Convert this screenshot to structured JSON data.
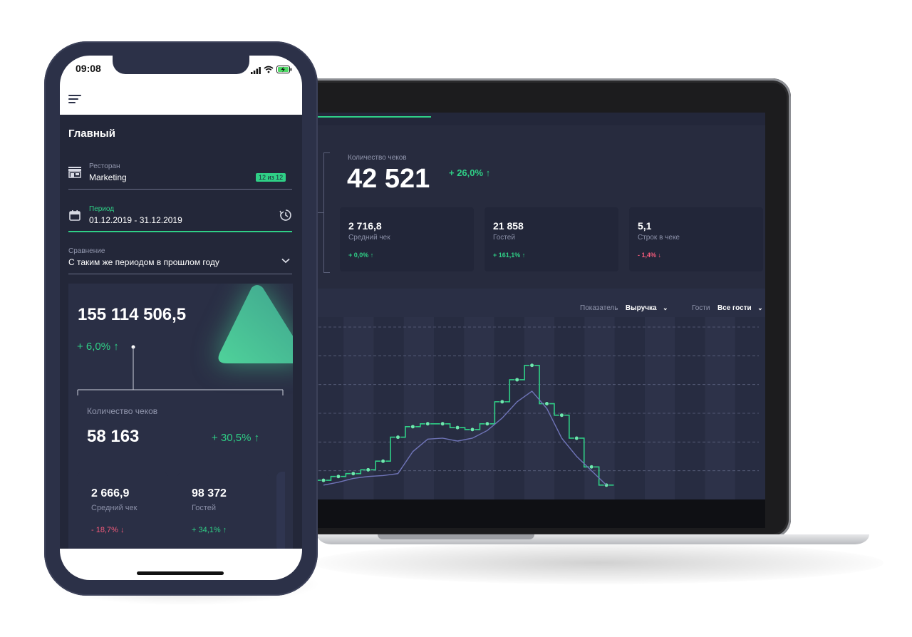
{
  "colors": {
    "accent": "#2fcf86",
    "negative": "#f35b7b",
    "panel": "#272b3e",
    "line": "#6f74b7"
  },
  "phone": {
    "status": {
      "time": "09:08",
      "icons": [
        "signal-icon",
        "wifi-icon",
        "battery-charging-icon"
      ]
    },
    "menu_icon": "menu-icon",
    "title": "Главный",
    "restaurant": {
      "label": "Ресторан",
      "value": "Marketing",
      "badge": "12 из 12",
      "icon": "store-icon"
    },
    "period": {
      "label": "Период",
      "value": "01.12.2019 - 31.12.2019",
      "icon": "calendar-icon",
      "action_icon": "history-icon"
    },
    "comparison": {
      "label": "Сравнение",
      "value": "С таким же периодом в прошлом году",
      "icon": "chevron-down-icon"
    },
    "total": {
      "value": "155 114 506,5",
      "change": "+ 6,0%",
      "direction": "up"
    },
    "checks": {
      "label": "Количество чеков",
      "value": "58 163",
      "change": "+ 30,5%",
      "direction": "up"
    },
    "cards": [
      {
        "value": "2 666,9",
        "label": "Средний чек",
        "change": "- 18,7%",
        "direction": "down"
      },
      {
        "value": "98 372",
        "label": "Гостей",
        "change": "+ 34,1%",
        "direction": "up"
      }
    ]
  },
  "laptop": {
    "checks": {
      "label": "Количество чеков",
      "value": "42 521",
      "change": "+ 26,0%",
      "direction": "up"
    },
    "cards": [
      {
        "value": "2 716,8",
        "label": "Средний чек",
        "change": "+ 0,0%",
        "direction": "up"
      },
      {
        "value": "21 858",
        "label": "Гостей",
        "change": "+ 161,1%",
        "direction": "up"
      },
      {
        "value": "5,1",
        "label": "Строк в чеке",
        "change": "- 1,4%",
        "direction": "down"
      }
    ],
    "selectors": [
      {
        "label": "Показатель",
        "value": "Выручка"
      },
      {
        "label": "Гости",
        "value": "Все гости"
      }
    ]
  },
  "chart_data": {
    "type": "line",
    "x": [
      1,
      2,
      3,
      4,
      5,
      6,
      7,
      8,
      9,
      10,
      11,
      12,
      13,
      14,
      15,
      16,
      17,
      18,
      19,
      20
    ],
    "series": [
      {
        "style": "step-with-markers",
        "color": "#2fcf86",
        "values": [
          20,
          24,
          27,
          31,
          40,
          65,
          76,
          79,
          79,
          75,
          73,
          79,
          102,
          125,
          140,
          100,
          88,
          64,
          34,
          15
        ]
      },
      {
        "style": "line",
        "color": "#6f74b7",
        "values": [
          15,
          18,
          22,
          24,
          25,
          27,
          50,
          63,
          64,
          61,
          64,
          72,
          85,
          102,
          113,
          95,
          64,
          45,
          30,
          15
        ]
      }
    ],
    "ylim": [
      0,
      180
    ],
    "grid": true,
    "columns": 15
  }
}
